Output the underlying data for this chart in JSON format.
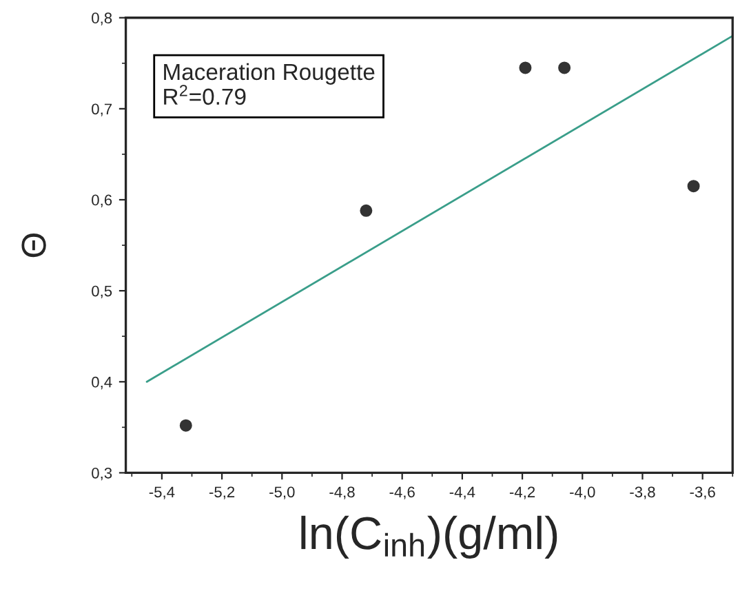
{
  "chart_data": {
    "type": "scatter",
    "xlabel": "ln(C$_{inh}$)(g/ml)",
    "ylabel": "Θ",
    "annotations": [
      "Maceration Rougette\nR$^{2}$=0.79"
    ],
    "series": [
      {
        "marker": "circle",
        "color": "#333333",
        "x": [
          -5.32,
          -4.72,
          -4.19,
          -4.06,
          -3.63
        ],
        "values": [
          0.352,
          0.588,
          0.745,
          0.745,
          0.615
        ]
      },
      {
        "type": "line",
        "color": "#3a9e8a",
        "x": [
          -5.45,
          -3.5
        ],
        "values": [
          0.4,
          0.78
        ]
      }
    ],
    "xlim": [
      -5.52,
      -3.5
    ],
    "ylim": [
      0.3,
      0.8
    ],
    "xticks": [
      {
        "value": -5.4,
        "label": "-5,4"
      },
      {
        "value": -5.2,
        "label": "-5,2"
      },
      {
        "value": -5.0,
        "label": "-5,0"
      },
      {
        "value": -4.8,
        "label": "-4,8"
      },
      {
        "value": -4.6,
        "label": "-4,6"
      },
      {
        "value": -4.4,
        "label": "-4,4"
      },
      {
        "value": -4.2,
        "label": "-4,2"
      },
      {
        "value": -4.0,
        "label": "-4,0"
      },
      {
        "value": -3.8,
        "label": "-3,8"
      },
      {
        "value": -3.6,
        "label": "-3,6"
      }
    ],
    "yticks": [
      {
        "value": 0.3,
        "label": "0,3"
      },
      {
        "value": 0.4,
        "label": "0,4"
      },
      {
        "value": 0.5,
        "label": "0,5"
      },
      {
        "value": 0.6,
        "label": "0,6"
      },
      {
        "value": 0.7,
        "label": "0,7"
      },
      {
        "value": 0.8,
        "label": "0,8"
      }
    ],
    "grid": false,
    "legend": false
  }
}
